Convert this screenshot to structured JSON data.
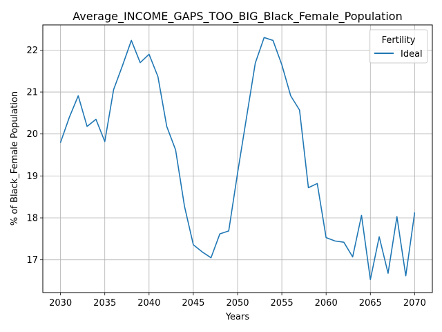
{
  "chart_data": {
    "type": "line",
    "title": "Average_INCOME_GAPS_TOO_BIG_Black_Female_Population",
    "xlabel": "Years",
    "ylabel": "% of Black_Female Population",
    "xlim": [
      2028.0,
      2072.0
    ],
    "ylim": [
      16.22,
      22.6
    ],
    "x_ticks": [
      2030,
      2035,
      2040,
      2045,
      2050,
      2055,
      2060,
      2065,
      2070
    ],
    "y_ticks": [
      17,
      18,
      19,
      20,
      21,
      22
    ],
    "grid": true,
    "legend": {
      "title": "Fertility",
      "placement": "top-right"
    },
    "x": [
      2030,
      2031,
      2032,
      2033,
      2034,
      2035,
      2036,
      2037,
      2038,
      2039,
      2040,
      2041,
      2042,
      2043,
      2044,
      2045,
      2046,
      2047,
      2048,
      2049,
      2050,
      2051,
      2052,
      2053,
      2054,
      2055,
      2056,
      2057,
      2058,
      2059,
      2060,
      2061,
      2062,
      2063,
      2064,
      2065,
      2066,
      2067,
      2068,
      2069,
      2070
    ],
    "series": [
      {
        "name": "Ideal",
        "color": "#1f77b4",
        "values": [
          19.8,
          20.4,
          20.91,
          20.18,
          20.35,
          19.82,
          21.06,
          21.63,
          22.23,
          21.7,
          21.9,
          21.37,
          20.18,
          19.62,
          18.28,
          17.36,
          17.19,
          17.05,
          17.62,
          17.69,
          19.07,
          20.38,
          21.69,
          22.3,
          22.23,
          21.65,
          20.91,
          20.57,
          18.72,
          18.82,
          17.53,
          17.45,
          17.42,
          17.07,
          18.06,
          16.53,
          17.55,
          16.68,
          18.03,
          16.62,
          18.12
        ]
      }
    ]
  }
}
